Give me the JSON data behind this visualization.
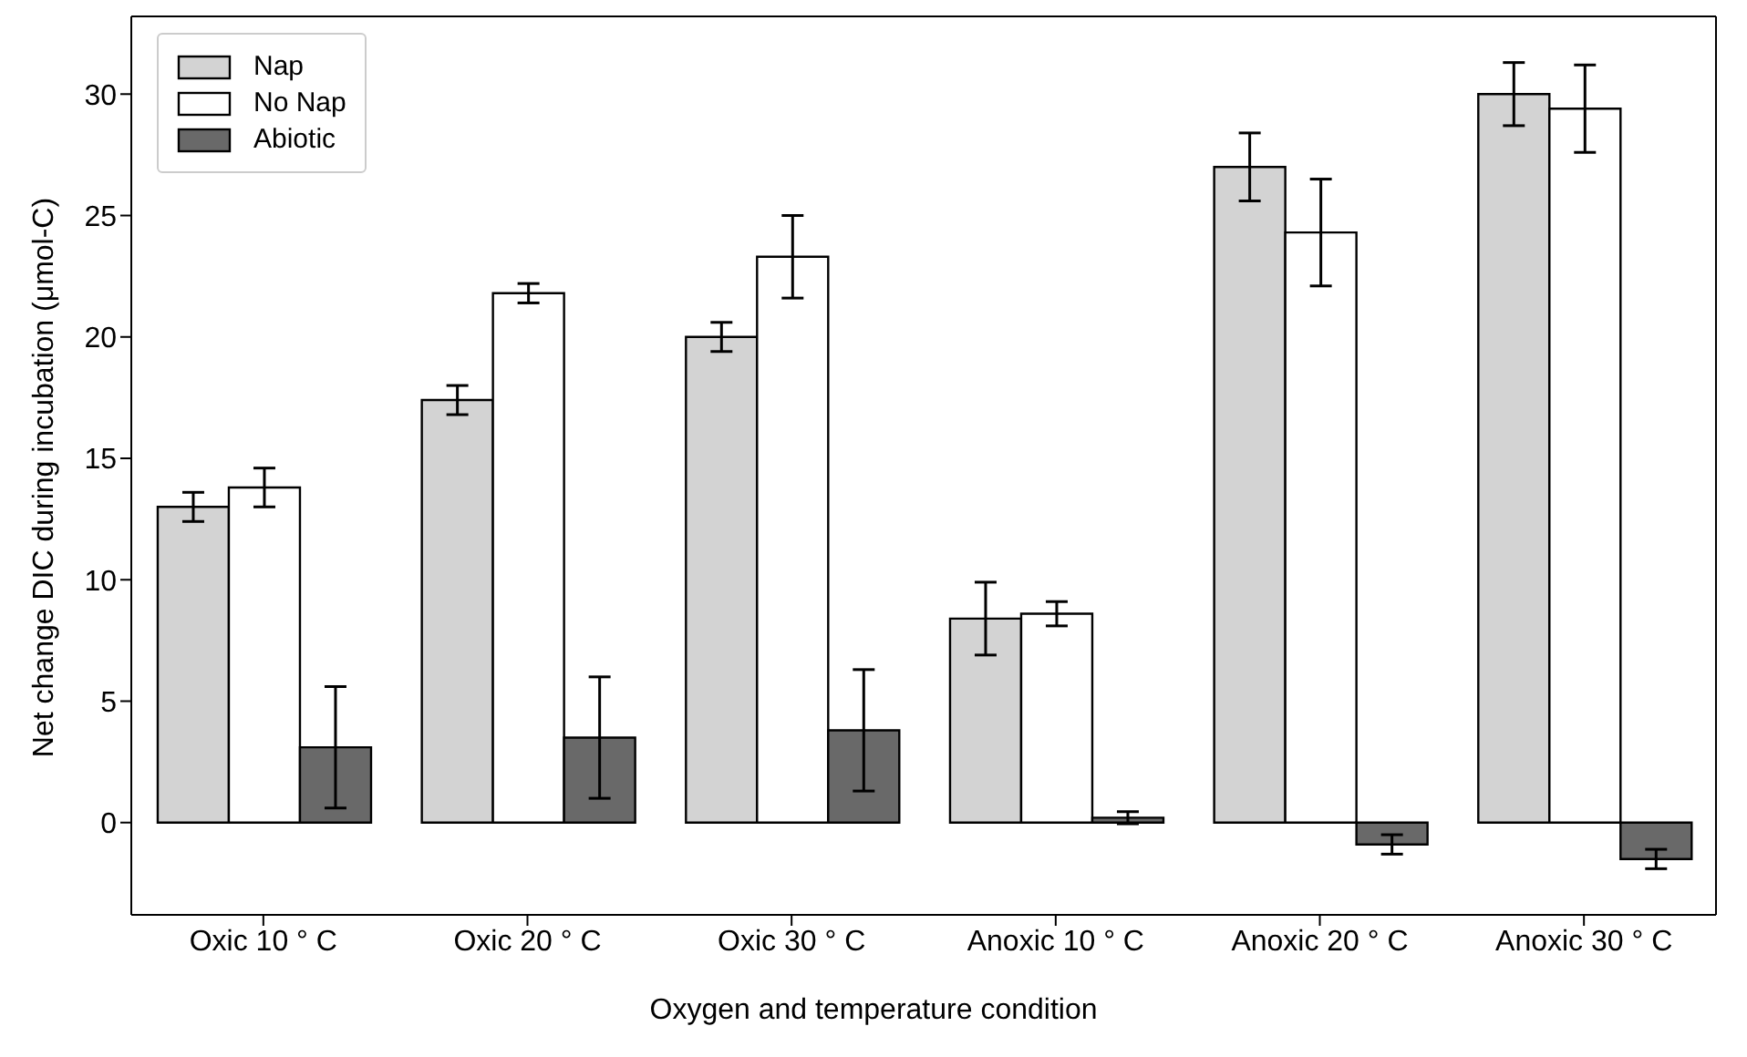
{
  "chart_data": {
    "type": "bar",
    "xlabel": "Oxygen and temperature condition",
    "ylabel": "Net change DIC during incubation (μmol-C)",
    "categories": [
      "Oxic 10 ° C",
      "Oxic 20 ° C",
      "Oxic 30 ° C",
      "Anoxic 10 ° C",
      "Anoxic 20 ° C",
      "Anoxic 30 ° C"
    ],
    "series": [
      {
        "name": "Nap",
        "color": "#d3d3d3",
        "values": [
          13.0,
          17.4,
          20.0,
          8.4,
          27.0,
          30.0
        ],
        "errors": [
          0.6,
          0.6,
          0.6,
          1.5,
          1.4,
          1.3
        ]
      },
      {
        "name": "No Nap",
        "color": "#ffffff",
        "values": [
          13.8,
          21.8,
          23.3,
          8.6,
          24.3,
          29.4
        ],
        "errors": [
          0.8,
          0.4,
          1.7,
          0.5,
          2.2,
          1.8
        ]
      },
      {
        "name": "Abiotic",
        "color": "#696969",
        "values": [
          3.1,
          3.5,
          3.8,
          0.2,
          -0.9,
          -1.5
        ],
        "errors": [
          2.5,
          2.5,
          2.5,
          0.25,
          0.4,
          0.4
        ]
      }
    ],
    "ylim": [
      -3.8,
      33.2
    ],
    "yticks": [
      0,
      5,
      10,
      15,
      20,
      25,
      30
    ],
    "grid": false,
    "legend": "top left"
  }
}
